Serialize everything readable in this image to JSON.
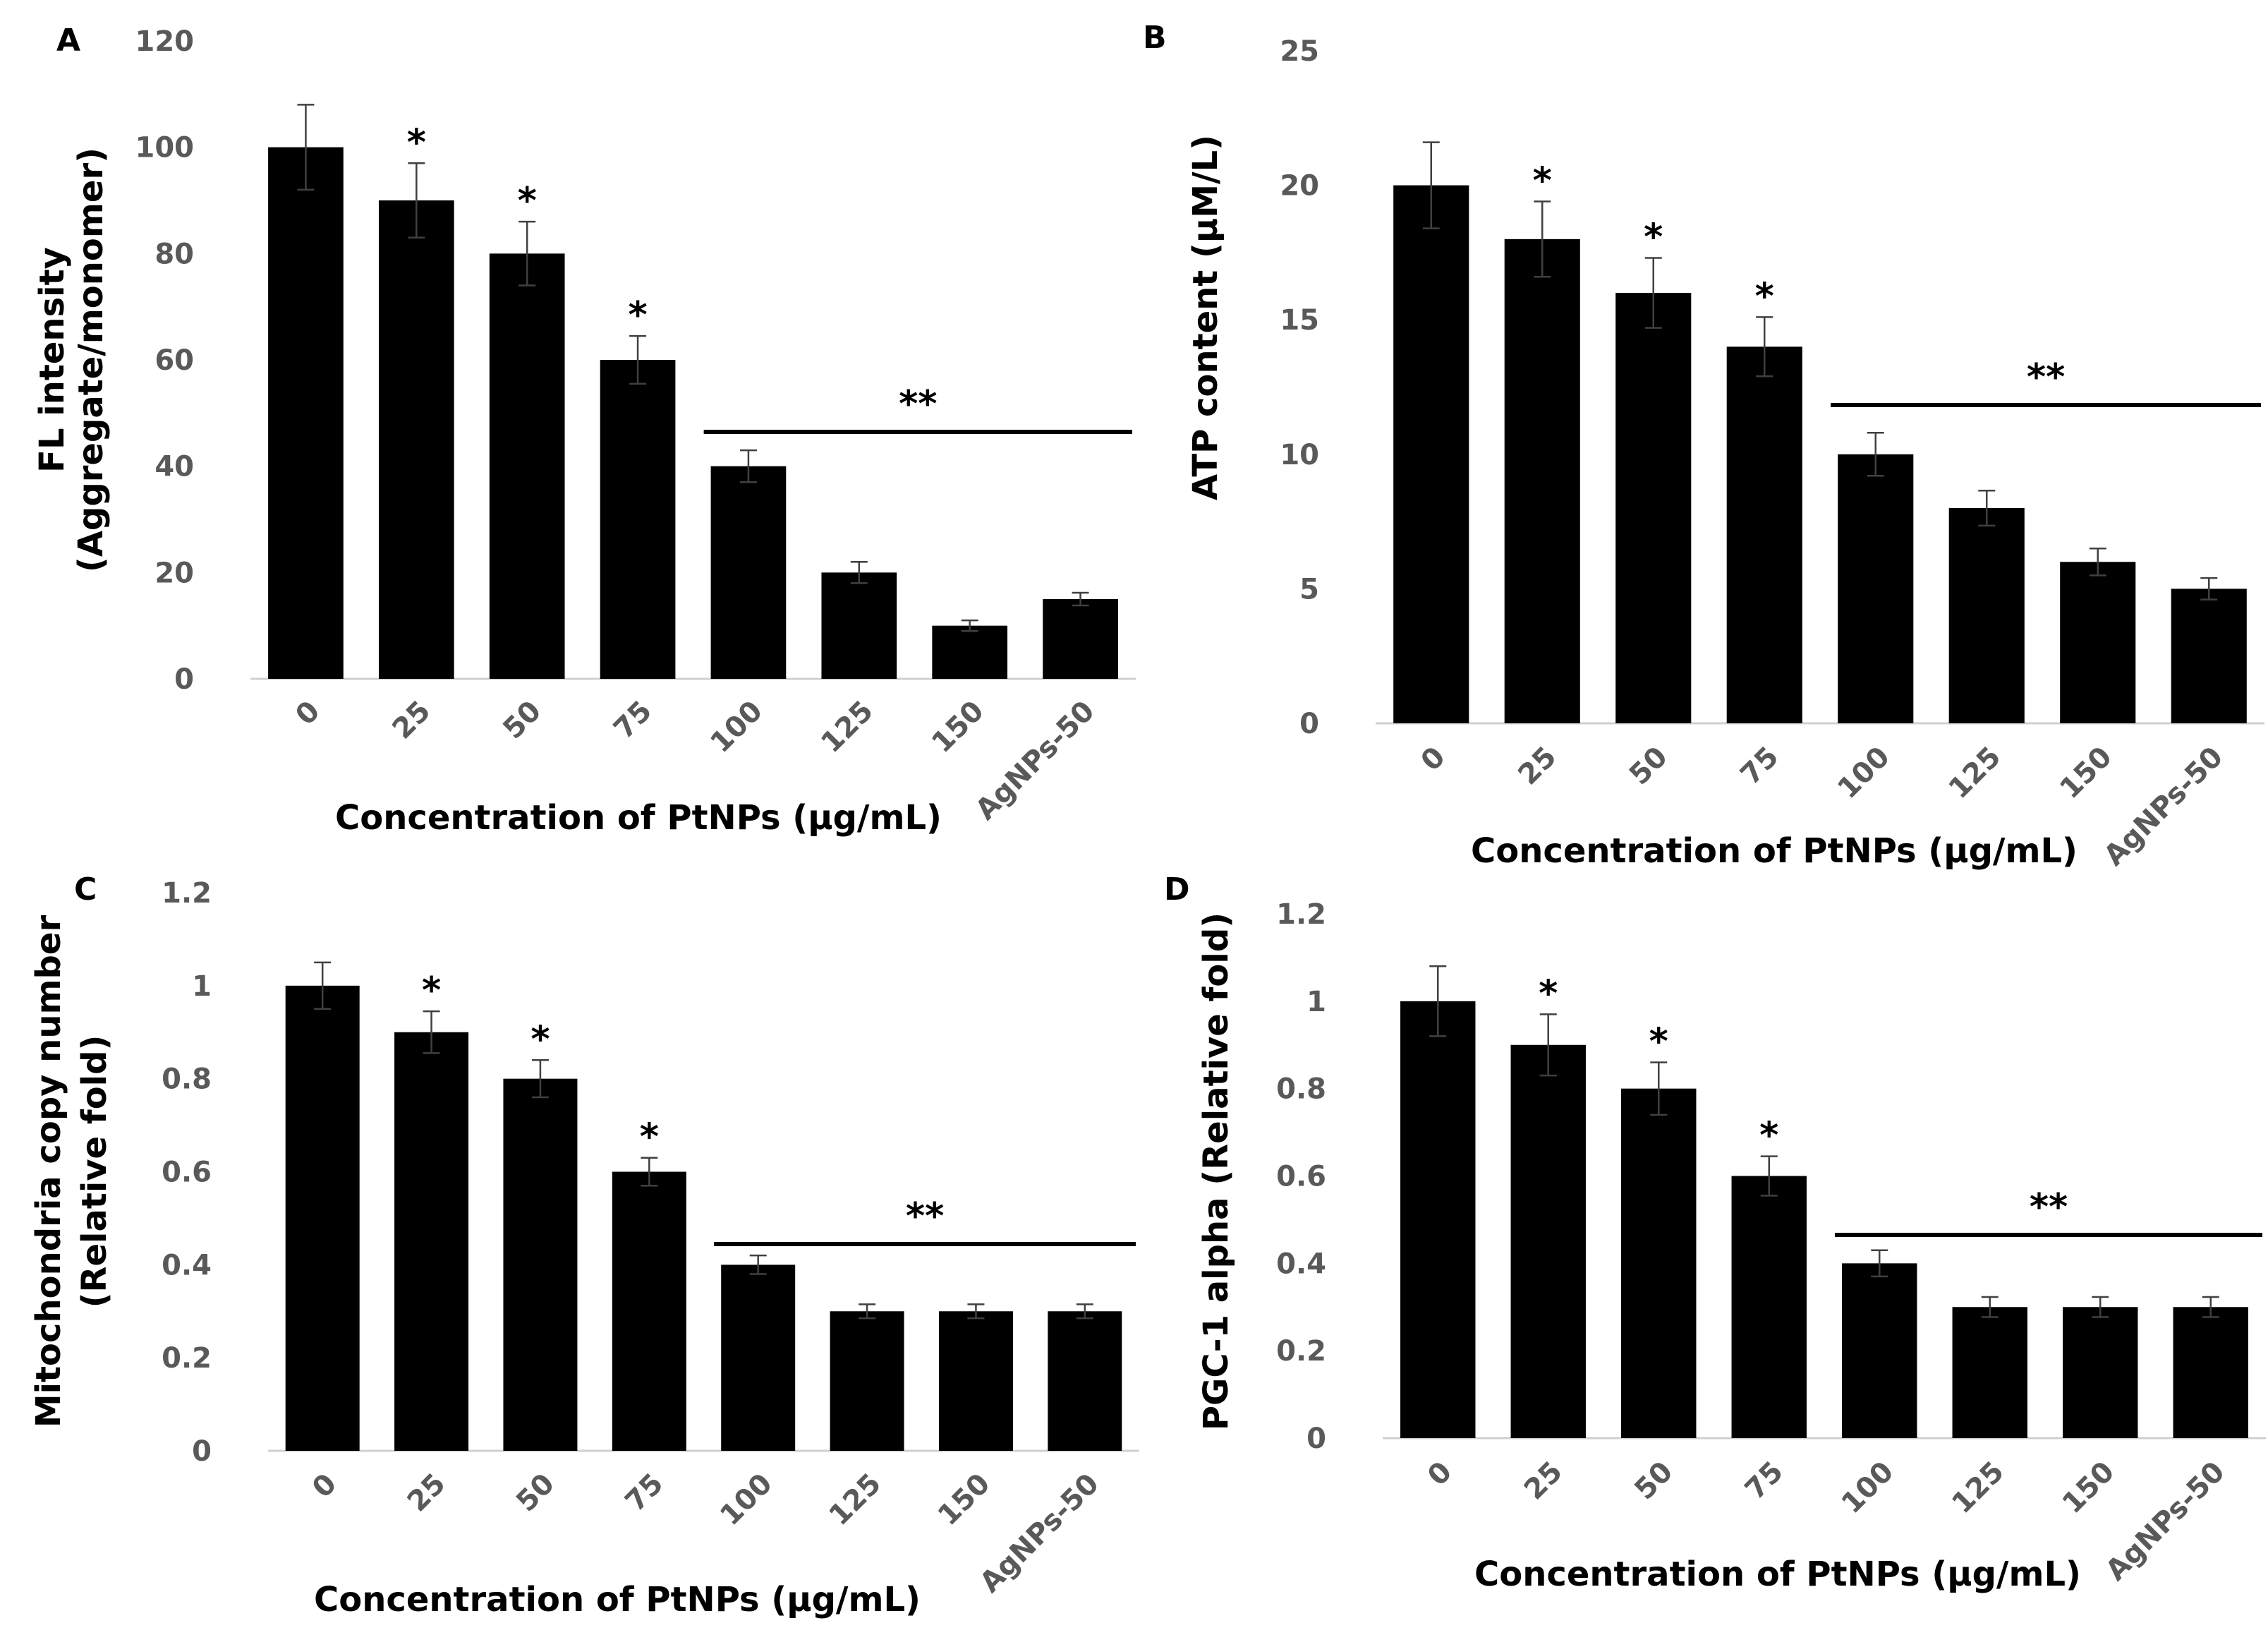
{
  "figure": {
    "panels": [
      "A",
      "B",
      "C",
      "D"
    ]
  },
  "chart_data": [
    {
      "panel": "A",
      "type": "bar",
      "categories": [
        "0",
        "25",
        "50",
        "75",
        "100",
        "125",
        "150",
        "AgNPs-50"
      ],
      "values": [
        100,
        90,
        80,
        60,
        40,
        20,
        10,
        15
      ],
      "errors": [
        8,
        7,
        6,
        4.5,
        3,
        2,
        1,
        1.2
      ],
      "stars": [
        "",
        "*",
        "*",
        "*",
        "",
        "",
        "",
        ""
      ],
      "group_bar": {
        "from": 4,
        "to": 7,
        "label": "**"
      },
      "ylim": [
        0,
        120
      ],
      "yticks": [
        0,
        20,
        40,
        60,
        80,
        100,
        120
      ],
      "xlabel": "Concentration of PtNPs (µg/mL)",
      "ylabel": [
        "FL intensity",
        "(Aggregate/monomer)"
      ]
    },
    {
      "panel": "B",
      "type": "bar",
      "categories": [
        "0",
        "25",
        "50",
        "75",
        "100",
        "125",
        "150",
        "AgNPs-50"
      ],
      "values": [
        20,
        18,
        16,
        14,
        10,
        8,
        6,
        5
      ],
      "errors": [
        1.6,
        1.4,
        1.3,
        1.1,
        0.8,
        0.65,
        0.5,
        0.4
      ],
      "stars": [
        "",
        "*",
        "*",
        "*",
        "",
        "",
        "",
        ""
      ],
      "group_bar": {
        "from": 4,
        "to": 7,
        "label": "**"
      },
      "ylim": [
        0,
        25
      ],
      "yticks": [
        0,
        5,
        10,
        15,
        20,
        25
      ],
      "xlabel": "Concentration of PtNPs (µg/mL)",
      "ylabel": [
        "ATP content (µM/L)"
      ]
    },
    {
      "panel": "C",
      "type": "bar",
      "categories": [
        "0",
        "25",
        "50",
        "75",
        "100",
        "125",
        "150",
        "AgNPs-50"
      ],
      "values": [
        1,
        0.9,
        0.8,
        0.6,
        0.4,
        0.3,
        0.3,
        0.3
      ],
      "errors": [
        0.05,
        0.045,
        0.04,
        0.03,
        0.02,
        0.015,
        0.015,
        0.015
      ],
      "stars": [
        "",
        "*",
        "*",
        "*",
        "",
        "",
        "",
        ""
      ],
      "group_bar": {
        "from": 4,
        "to": 7,
        "label": "**"
      },
      "ylim": [
        0,
        1.2
      ],
      "yticks": [
        0,
        0.2,
        0.4,
        0.6,
        0.8,
        1,
        1.2
      ],
      "xlabel": "Concentration of PtNPs (µg/mL)",
      "ylabel": [
        "Mitochondria copy number",
        "(Relative fold)"
      ]
    },
    {
      "panel": "D",
      "type": "bar",
      "categories": [
        "0",
        "25",
        "50",
        "75",
        "100",
        "125",
        "150",
        "AgNPs-50"
      ],
      "values": [
        1,
        0.9,
        0.8,
        0.6,
        0.4,
        0.3,
        0.3,
        0.3
      ],
      "errors": [
        0.08,
        0.07,
        0.06,
        0.045,
        0.03,
        0.023,
        0.023,
        0.023
      ],
      "stars": [
        "",
        "*",
        "*",
        "*",
        "",
        "",
        "",
        ""
      ],
      "group_bar": {
        "from": 4,
        "to": 7,
        "label": "**"
      },
      "ylim": [
        0,
        1.2
      ],
      "yticks": [
        0,
        0.2,
        0.4,
        0.6,
        0.8,
        1,
        1.2
      ],
      "xlabel": "Concentration of PtNPs (µg/mL)",
      "ylabel": [
        "PGC-1 alpha (Relative fold)"
      ]
    }
  ]
}
